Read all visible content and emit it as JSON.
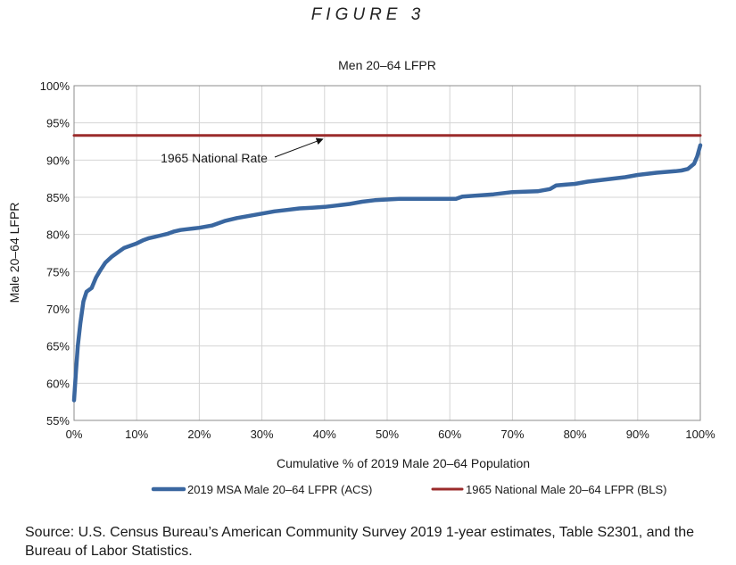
{
  "figure_heading": "FIGURE 3",
  "source_note": "Source: U.S. Census Bureau’s American Community Survey 2019 1-year estimates, Table S2301, and the Bureau of Labor Statistics.",
  "chart_data": {
    "type": "line",
    "title": "Men 20–64 LFPR",
    "xlabel": "Cumulative % of 2019 Male 20–64 Population",
    "ylabel": "Male 20–64 LFPR",
    "xlim": [
      0,
      100
    ],
    "ylim": [
      55,
      100
    ],
    "x_ticks": [
      0,
      10,
      20,
      30,
      40,
      50,
      60,
      70,
      80,
      90,
      100
    ],
    "x_tick_labels": [
      "0%",
      "10%",
      "20%",
      "30%",
      "40%",
      "50%",
      "60%",
      "70%",
      "80%",
      "90%",
      "100%"
    ],
    "y_ticks": [
      55,
      60,
      65,
      70,
      75,
      80,
      85,
      90,
      95,
      100
    ],
    "y_tick_labels": [
      "55%",
      "60%",
      "65%",
      "70%",
      "75%",
      "80%",
      "85%",
      "90%",
      "95%",
      "100%"
    ],
    "grid": true,
    "legend_position": "bottom",
    "series": [
      {
        "name": "2019 MSA Male 20–64 LFPR (ACS)",
        "color": "#3a67a0",
        "x": [
          0,
          0.3,
          0.6,
          1.0,
          1.5,
          2.0,
          2.8,
          3.5,
          4.2,
          5.0,
          6.0,
          7.0,
          8.0,
          9.0,
          10,
          11,
          12,
          13,
          14,
          15,
          16,
          17,
          18,
          19,
          20,
          22,
          24,
          26,
          28,
          30,
          32,
          34,
          36,
          38,
          40,
          42,
          44,
          46,
          48,
          50,
          52,
          55,
          58,
          61,
          62,
          64,
          67,
          70,
          74,
          76,
          77,
          80,
          82,
          85,
          88,
          90,
          93,
          96,
          97,
          98,
          99,
          99.5,
          100
        ],
        "y": [
          57.7,
          61.5,
          65,
          68,
          71,
          72.3,
          72.8,
          74.2,
          75.2,
          76.2,
          77,
          77.6,
          78.2,
          78.5,
          78.8,
          79.2,
          79.5,
          79.7,
          79.9,
          80.1,
          80.4,
          80.6,
          80.7,
          80.8,
          80.9,
          81.2,
          81.8,
          82.2,
          82.5,
          82.8,
          83.1,
          83.3,
          83.5,
          83.6,
          83.7,
          83.9,
          84.1,
          84.4,
          84.6,
          84.7,
          84.8,
          84.8,
          84.8,
          84.8,
          85.1,
          85.2,
          85.4,
          85.7,
          85.8,
          86.1,
          86.6,
          86.8,
          87.1,
          87.4,
          87.7,
          88.0,
          88.3,
          88.5,
          88.6,
          88.8,
          89.5,
          90.5,
          92.0
        ]
      },
      {
        "name": "1965 National Male 20–64 LFPR (BLS)",
        "color": "#9b2b2b",
        "x": [
          0,
          100
        ],
        "y": [
          93.3,
          93.3
        ]
      }
    ],
    "annotations": [
      {
        "text": "1965 National Rate",
        "arrow_to": {
          "x": 39.7,
          "y": 93.3
        }
      }
    ]
  }
}
